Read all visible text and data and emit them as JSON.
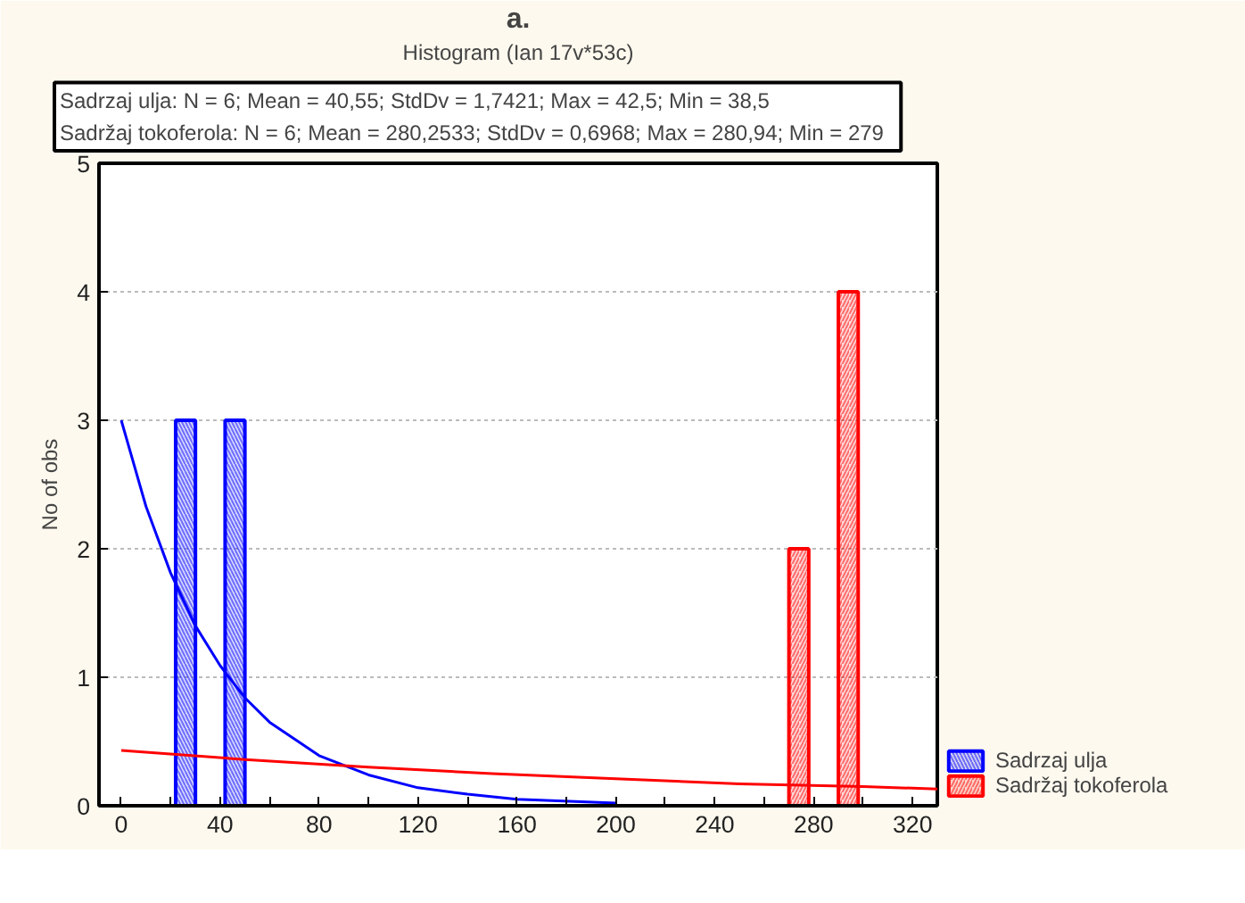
{
  "chart_data": {
    "type": "histogram",
    "title": "Histogram (Ian 17v*53c)",
    "ylabel": "No of obs",
    "annotations": [
      "a.",
      "Sadrzaj ulja:   N = 6; Mean = 40,55; StdDv = 1,7421; Max = 42,5; Min = 38,5\nSadržaj tokoferola:   N = 6; Mean = 280,2533; StdDv = 0,6968; Max = 280,94; Min = 279"
    ],
    "xlim": [
      -9,
      330
    ],
    "ylim": [
      0,
      5
    ],
    "xticks": [
      0,
      {
        "value": 20,
        "label": null
      },
      40,
      {
        "value": 60,
        "label": null
      },
      80,
      {
        "value": 100,
        "label": null
      },
      120,
      {
        "value": 140,
        "label": null
      },
      160,
      {
        "value": 180,
        "label": null
      },
      200,
      {
        "value": 220,
        "label": null
      },
      240,
      {
        "value": 260,
        "label": null
      },
      280,
      {
        "value": 300,
        "label": null
      },
      320
    ],
    "yticks": [
      0,
      1,
      2,
      3,
      4,
      5
    ],
    "grid": "y",
    "legend": "bottom right",
    "series": [
      {
        "name": "Sadrzaj ulja",
        "color": "#0000ff",
        "bins": [
          22,
          30,
          42,
          50
        ],
        "values": [
          3,
          null,
          3
        ]
      },
      {
        "name": "Sadržaj tokoferola",
        "color": "#ff0000",
        "bins": [
          270,
          278,
          290,
          298
        ],
        "values": [
          2,
          null,
          4
        ]
      },
      {
        "type": "line",
        "color": "#0000ff",
        "x": [
          0,
          10,
          20,
          30,
          40,
          50,
          60,
          80,
          100,
          120,
          140,
          160,
          200
        ],
        "values": [
          3,
          2.33,
          1.81,
          1.4,
          1.09,
          0.84,
          0.65,
          0.39,
          0.24,
          0.14,
          0.09,
          0.05,
          0.02
        ]
      },
      {
        "type": "line",
        "color": "#ff0000",
        "x": [
          0,
          50,
          100,
          150,
          200,
          250,
          300,
          330
        ],
        "values": [
          0.43,
          0.36,
          0.3,
          0.25,
          0.21,
          0.17,
          0.15,
          0.13
        ]
      }
    ]
  }
}
